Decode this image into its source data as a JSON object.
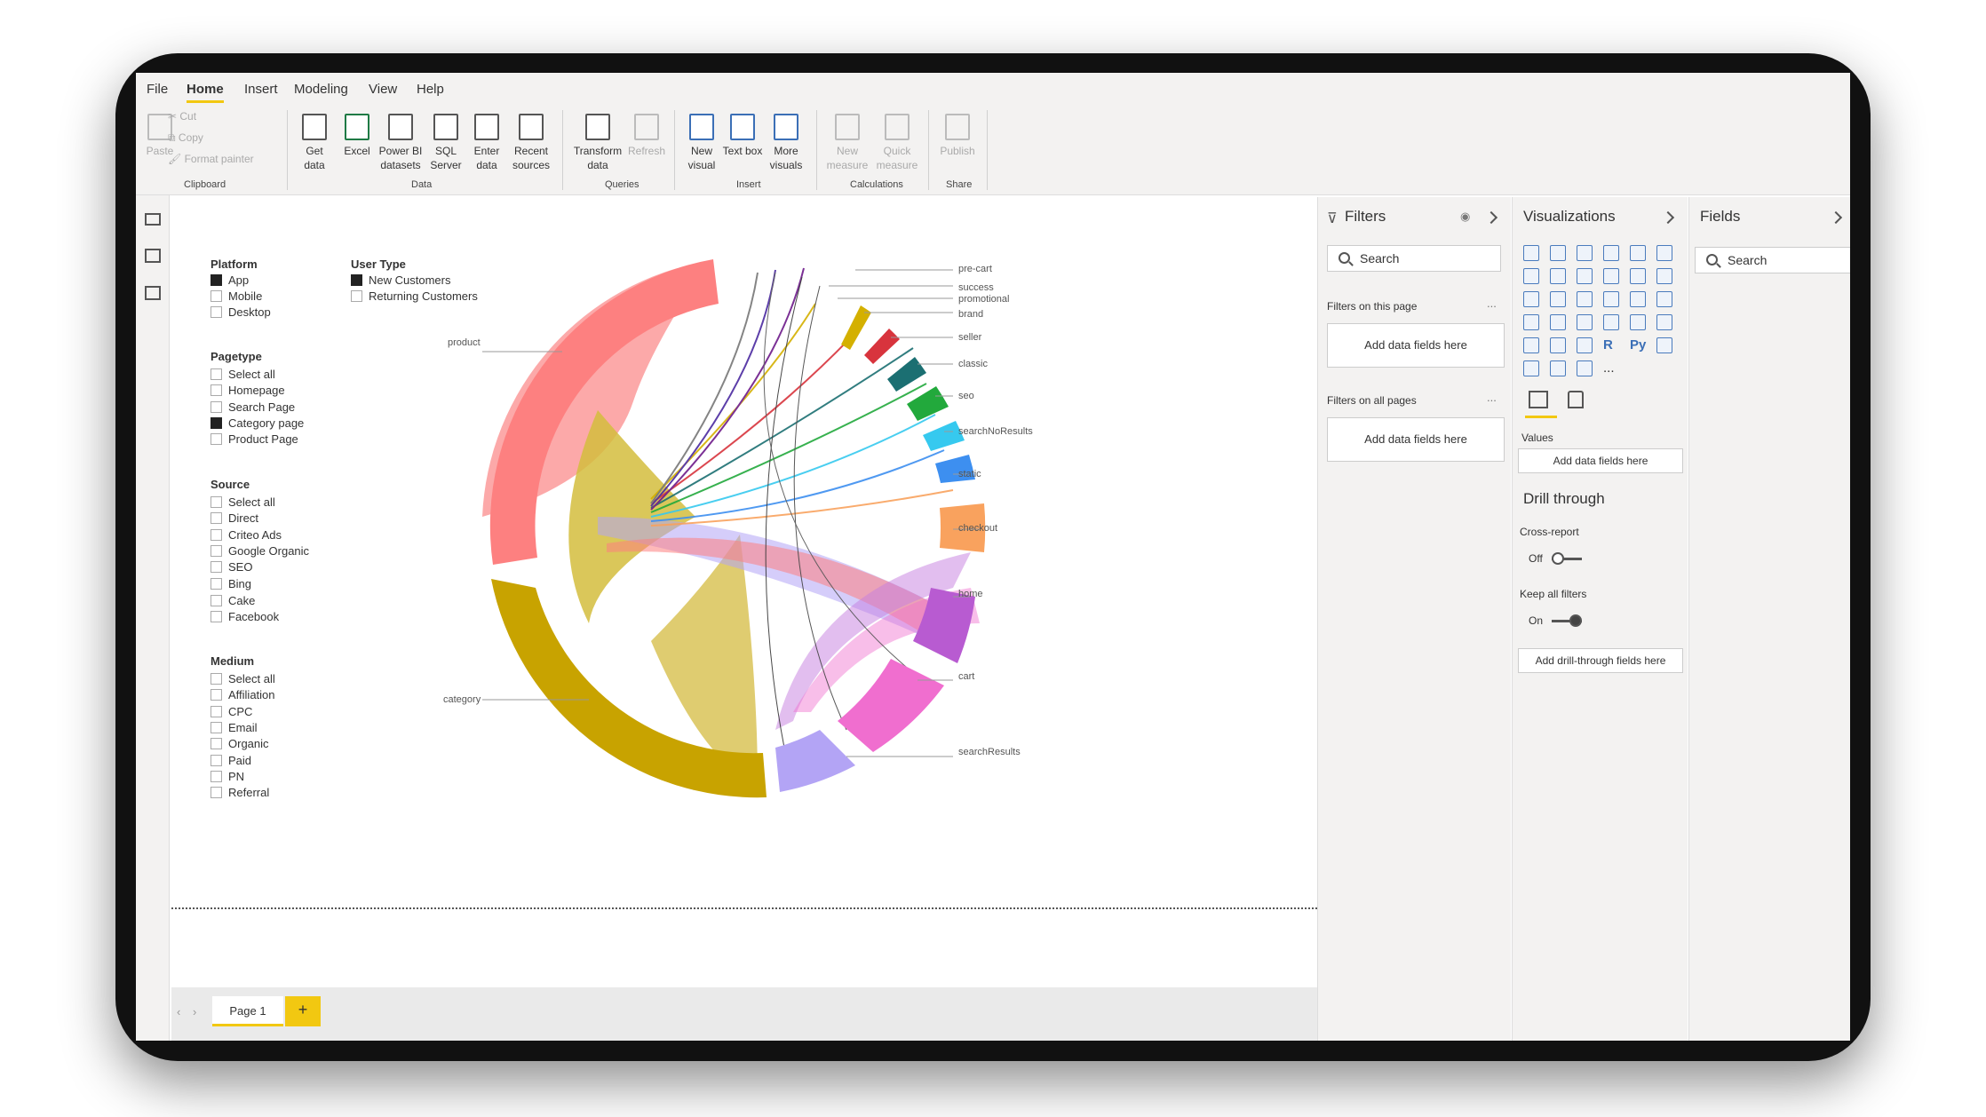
{
  "ribbon": {
    "tabs": [
      "File",
      "Home",
      "Insert",
      "Modeling",
      "View",
      "Help"
    ],
    "active_tab": "Home",
    "clipboard": {
      "paste": "Paste",
      "cut": "Cut",
      "copy": "Copy",
      "format_painter": "Format painter",
      "group": "Clipboard"
    },
    "data": {
      "get_data": "Get data",
      "excel": "Excel",
      "powerbi": "Power BI datasets",
      "sql": "SQL Server",
      "enter": "Enter data",
      "recent": "Recent sources",
      "group": "Data"
    },
    "queries": {
      "transform": "Transform data",
      "refresh": "Refresh",
      "group": "Queries"
    },
    "insert": {
      "new_visual": "New visual",
      "text_box": "Text box",
      "more_visuals": "More visuals",
      "group": "Insert"
    },
    "calculations": {
      "new_measure": "New measure",
      "quick_measure": "Quick measure",
      "group": "Calculations"
    },
    "share": {
      "publish": "Publish",
      "group": "Share"
    }
  },
  "slicers": {
    "platform": {
      "title": "Platform",
      "options": [
        {
          "label": "App",
          "checked": true
        },
        {
          "label": "Mobile",
          "checked": false
        },
        {
          "label": "Desktop",
          "checked": false
        }
      ]
    },
    "user_type": {
      "title": "User Type",
      "options": [
        {
          "label": "New Customers",
          "checked": true
        },
        {
          "label": "Returning Customers",
          "checked": false
        }
      ]
    },
    "pagetype": {
      "title": "Pagetype",
      "options": [
        {
          "label": "Select all",
          "checked": false
        },
        {
          "label": "Homepage",
          "checked": false
        },
        {
          "label": "Search Page",
          "checked": false
        },
        {
          "label": "Category page",
          "checked": true
        },
        {
          "label": "Product Page",
          "checked": false
        }
      ]
    },
    "source": {
      "title": "Source",
      "options": [
        {
          "label": "Select all",
          "checked": false
        },
        {
          "label": "Direct",
          "checked": false
        },
        {
          "label": "Criteo Ads",
          "checked": false
        },
        {
          "label": "Google Organic",
          "checked": false
        },
        {
          "label": "SEO",
          "checked": false
        },
        {
          "label": "Bing",
          "checked": false
        },
        {
          "label": "Cake",
          "checked": false
        },
        {
          "label": "Facebook",
          "checked": false
        }
      ]
    },
    "medium": {
      "title": "Medium",
      "options": [
        {
          "label": "Select all",
          "checked": false
        },
        {
          "label": "Affiliation",
          "checked": false
        },
        {
          "label": "CPC",
          "checked": false
        },
        {
          "label": "Email",
          "checked": false
        },
        {
          "label": "Organic",
          "checked": false
        },
        {
          "label": "Paid",
          "checked": false
        },
        {
          "label": "PN",
          "checked": false
        },
        {
          "label": "Referral",
          "checked": false
        }
      ]
    }
  },
  "chord": {
    "left_labels": [
      "product",
      "category"
    ],
    "right_labels": [
      "pre-cart",
      "success",
      "promotional",
      "brand",
      "seller",
      "classic",
      "seo",
      "searchNoResults",
      "static",
      "checkout",
      "home",
      "cart",
      "searchResults"
    ],
    "colors": {
      "product": "#fd8080",
      "category": "#c8a300",
      "searchResults": "#b3a4f5",
      "cart": "#f06ecf",
      "home": "#b85bd1",
      "checkout": "#f9a25e",
      "static": "#3d8ff0",
      "searchNoResults": "#36c9ef",
      "seo": "#22a93c",
      "classic": "#1b6f72",
      "seller": "#d8343d",
      "brand": "#d4b000"
    }
  },
  "filters": {
    "title": "Filters",
    "search": "Search",
    "on_this_page": "Filters on this page",
    "on_all_pages": "Filters on all pages",
    "add_fields": "Add data fields here",
    "more": "..."
  },
  "visualizations": {
    "title": "Visualizations",
    "values": "Values",
    "add_fields": "Add data fields here",
    "drill_through": "Drill through",
    "cross_report": "Cross-report",
    "cross_report_state": "Off",
    "keep_filters": "Keep all filters",
    "keep_filters_state": "On",
    "add_drill": "Add drill-through fields here",
    "r_label": "R",
    "py_label": "Py",
    "more": "..."
  },
  "fields": {
    "title": "Fields",
    "search": "Search"
  },
  "pages": {
    "tabs": [
      "Page 1"
    ],
    "add": "+"
  }
}
